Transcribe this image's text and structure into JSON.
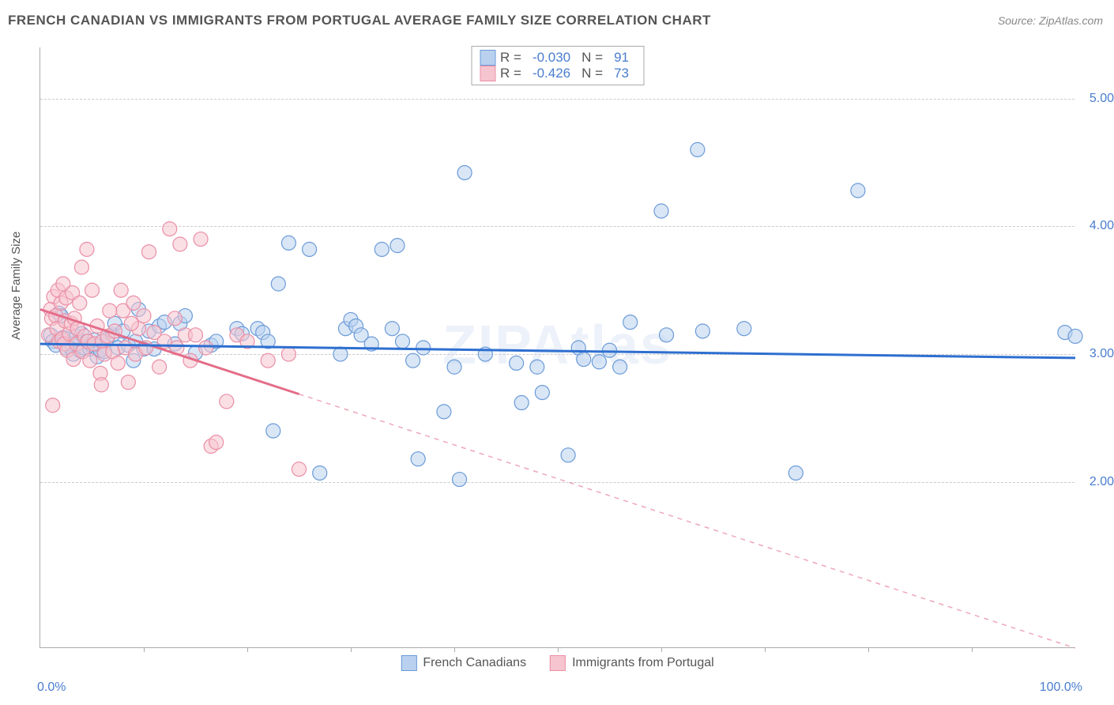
{
  "title": "FRENCH CANADIAN VS IMMIGRANTS FROM PORTUGAL AVERAGE FAMILY SIZE CORRELATION CHART",
  "source": "Source: ZipAtlas.com",
  "watermark": "ZIPAtlas",
  "ylabel": "Average Family Size",
  "x_axis": {
    "min_label": "0.0%",
    "max_label": "100.0%",
    "min": 0,
    "max": 100
  },
  "y_axis": {
    "ticks": [
      {
        "v": 2.0,
        "label": "2.00"
      },
      {
        "v": 3.0,
        "label": "3.00"
      },
      {
        "v": 4.0,
        "label": "4.00"
      },
      {
        "v": 5.0,
        "label": "5.00"
      }
    ],
    "min": 0.7,
    "max": 5.4
  },
  "x_ticks_minor": [
    10,
    20,
    30,
    40,
    50,
    60,
    70,
    80,
    90
  ],
  "series": {
    "blue": {
      "label": "French Canadians",
      "R": "-0.030",
      "N": "91",
      "fill": "#b9d1ef",
      "stroke": "#6b9bd8",
      "line_color": "#2e6fd0",
      "marker_r": 9,
      "fill_opacity": 0.55,
      "trend": {
        "y_at_x0": 3.08,
        "y_at_x100": 2.97,
        "solid_until_x": 100
      },
      "points": [
        [
          1.0,
          3.15
        ],
        [
          1.2,
          3.1
        ],
        [
          1.5,
          3.07
        ],
        [
          1.8,
          3.32
        ],
        [
          2.0,
          3.3
        ],
        [
          2.2,
          3.13
        ],
        [
          2.5,
          3.05
        ],
        [
          2.6,
          3.12
        ],
        [
          2.8,
          3.06
        ],
        [
          3.0,
          3.08
        ],
        [
          3.2,
          3.0
        ],
        [
          3.5,
          3.14
        ],
        [
          3.8,
          3.03
        ],
        [
          4.0,
          3.16
        ],
        [
          4.2,
          3.05
        ],
        [
          4.5,
          3.1
        ],
        [
          4.8,
          3.04
        ],
        [
          5.0,
          3.07
        ],
        [
          5.2,
          3.11
        ],
        [
          5.5,
          2.98
        ],
        [
          5.8,
          3.03
        ],
        [
          6.0,
          3.1
        ],
        [
          6.2,
          3.02
        ],
        [
          6.5,
          3.12
        ],
        [
          7.0,
          3.15
        ],
        [
          7.2,
          3.24
        ],
        [
          7.5,
          3.05
        ],
        [
          8.0,
          3.18
        ],
        [
          8.5,
          3.07
        ],
        [
          9.0,
          2.95
        ],
        [
          9.2,
          3.1
        ],
        [
          9.5,
          3.35
        ],
        [
          10.0,
          3.04
        ],
        [
          10.5,
          3.18
        ],
        [
          11.0,
          3.04
        ],
        [
          11.5,
          3.22
        ],
        [
          12.0,
          3.25
        ],
        [
          13.0,
          3.08
        ],
        [
          13.5,
          3.24
        ],
        [
          14.0,
          3.3
        ],
        [
          15.0,
          3.01
        ],
        [
          16.5,
          3.07
        ],
        [
          17.0,
          3.1
        ],
        [
          19.0,
          3.2
        ],
        [
          19.5,
          3.16
        ],
        [
          21.0,
          3.2
        ],
        [
          21.5,
          3.17
        ],
        [
          22.0,
          3.1
        ],
        [
          22.5,
          2.4
        ],
        [
          23.0,
          3.55
        ],
        [
          24.0,
          3.87
        ],
        [
          26.0,
          3.82
        ],
        [
          27.0,
          2.07
        ],
        [
          29.0,
          3.0
        ],
        [
          29.5,
          3.2
        ],
        [
          30.0,
          3.27
        ],
        [
          30.5,
          3.22
        ],
        [
          31.0,
          3.15
        ],
        [
          32.0,
          3.08
        ],
        [
          33.0,
          3.82
        ],
        [
          34.0,
          3.2
        ],
        [
          34.5,
          3.85
        ],
        [
          35.0,
          3.1
        ],
        [
          36.0,
          2.95
        ],
        [
          36.5,
          2.18
        ],
        [
          37.0,
          3.05
        ],
        [
          39.0,
          2.55
        ],
        [
          40.0,
          2.9
        ],
        [
          40.5,
          2.02
        ],
        [
          41.0,
          4.42
        ],
        [
          43.0,
          3.0
        ],
        [
          46.0,
          2.93
        ],
        [
          46.5,
          2.62
        ],
        [
          48.0,
          2.9
        ],
        [
          48.5,
          2.7
        ],
        [
          51.0,
          2.21
        ],
        [
          52.0,
          3.05
        ],
        [
          52.5,
          2.96
        ],
        [
          55.0,
          3.03
        ],
        [
          56.0,
          2.9
        ],
        [
          57.0,
          3.25
        ],
        [
          60.0,
          4.12
        ],
        [
          60.5,
          3.15
        ],
        [
          63.5,
          4.6
        ],
        [
          64.0,
          3.18
        ],
        [
          68.0,
          3.2
        ],
        [
          73.0,
          2.07
        ],
        [
          79.0,
          4.28
        ],
        [
          99.0,
          3.17
        ],
        [
          100.0,
          3.14
        ],
        [
          54.0,
          2.94
        ]
      ]
    },
    "pink": {
      "label": "Immigrants from Portugal",
      "R": "-0.426",
      "N": "73",
      "fill": "#f6c4cf",
      "stroke": "#ea8fa5",
      "line_color": "#e46d89",
      "marker_r": 9,
      "fill_opacity": 0.55,
      "trend": {
        "y_at_x0": 3.35,
        "y_at_x100": 0.7,
        "solid_until_x": 25
      },
      "points": [
        [
          0.8,
          3.15
        ],
        [
          1.0,
          3.35
        ],
        [
          1.1,
          3.28
        ],
        [
          1.2,
          2.6
        ],
        [
          1.3,
          3.45
        ],
        [
          1.5,
          3.3
        ],
        [
          1.6,
          3.2
        ],
        [
          1.7,
          3.5
        ],
        [
          1.8,
          3.1
        ],
        [
          2.0,
          3.4
        ],
        [
          2.1,
          3.12
        ],
        [
          2.2,
          3.55
        ],
        [
          2.3,
          3.08
        ],
        [
          2.4,
          3.26
        ],
        [
          2.5,
          3.44
        ],
        [
          2.6,
          3.03
        ],
        [
          2.8,
          3.16
        ],
        [
          3.0,
          3.24
        ],
        [
          3.1,
          3.48
        ],
        [
          3.2,
          2.96
        ],
        [
          3.3,
          3.28
        ],
        [
          3.5,
          3.08
        ],
        [
          3.6,
          3.2
        ],
        [
          3.8,
          3.4
        ],
        [
          4.0,
          3.68
        ],
        [
          4.1,
          3.02
        ],
        [
          4.3,
          3.14
        ],
        [
          4.5,
          3.82
        ],
        [
          4.6,
          3.1
        ],
        [
          4.8,
          2.95
        ],
        [
          5.0,
          3.5
        ],
        [
          5.2,
          3.08
        ],
        [
          5.5,
          3.22
        ],
        [
          5.8,
          2.85
        ],
        [
          6.0,
          3.1
        ],
        [
          6.2,
          3.0
        ],
        [
          6.5,
          3.14
        ],
        [
          7.0,
          3.02
        ],
        [
          7.2,
          3.18
        ],
        [
          7.5,
          2.93
        ],
        [
          8.0,
          3.34
        ],
        [
          8.2,
          3.05
        ],
        [
          8.5,
          2.78
        ],
        [
          9.0,
          3.4
        ],
        [
          9.2,
          3.0
        ],
        [
          9.5,
          3.2
        ],
        [
          10.0,
          3.3
        ],
        [
          10.2,
          3.05
        ],
        [
          10.5,
          3.8
        ],
        [
          11.0,
          3.17
        ],
        [
          11.5,
          2.9
        ],
        [
          12.0,
          3.1
        ],
        [
          12.5,
          3.98
        ],
        [
          13.0,
          3.28
        ],
        [
          13.2,
          3.05
        ],
        [
          13.5,
          3.86
        ],
        [
          14.0,
          3.15
        ],
        [
          14.5,
          2.95
        ],
        [
          15.0,
          3.15
        ],
        [
          15.5,
          3.9
        ],
        [
          16.0,
          3.05
        ],
        [
          16.5,
          2.28
        ],
        [
          17.0,
          2.31
        ],
        [
          18.0,
          2.63
        ],
        [
          19.0,
          3.15
        ],
        [
          20.0,
          3.1
        ],
        [
          22.0,
          2.95
        ],
        [
          24.0,
          3.0
        ],
        [
          25.0,
          2.1
        ],
        [
          5.9,
          2.76
        ],
        [
          6.7,
          3.34
        ],
        [
          7.8,
          3.5
        ],
        [
          8.8,
          3.24
        ]
      ]
    }
  },
  "colors": {
    "background": "#ffffff",
    "grid": "#cccccc",
    "axis": "#aaaaaa",
    "title_text": "#555555",
    "tick_text": "#4a7dce"
  },
  "legend_stats": {
    "R_label": "R =",
    "N_label": "N ="
  }
}
